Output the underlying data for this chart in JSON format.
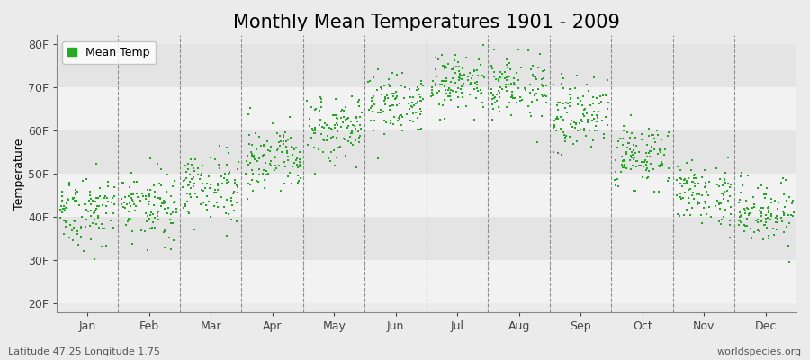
{
  "title": "Monthly Mean Temperatures 1901 - 2009",
  "ylabel": "Temperature",
  "xlabel_labels": [
    "Jan",
    "Feb",
    "Mar",
    "Apr",
    "May",
    "Jun",
    "Jul",
    "Aug",
    "Sep",
    "Oct",
    "Nov",
    "Dec"
  ],
  "ytick_labels": [
    "20F",
    "30F",
    "40F",
    "50F",
    "60F",
    "70F",
    "80F"
  ],
  "ytick_values": [
    20,
    30,
    40,
    50,
    60,
    70,
    80
  ],
  "ylim": [
    18,
    82
  ],
  "xlim": [
    0,
    12
  ],
  "dot_color": "#22AA22",
  "dot_size": 3.5,
  "legend_label": "Mean Temp",
  "footer_left": "Latitude 47.25 Longitude 1.75",
  "footer_right": "worldspecies.org",
  "title_fontsize": 15,
  "axis_fontsize": 9,
  "footer_fontsize": 8,
  "background_color": "#EBEBEB",
  "band_color_light": "#F2F2F2",
  "band_color_dark": "#E4E4E4",
  "grid_color": "#666666",
  "monthly_mean_F": [
    40.5,
    41.5,
    46.5,
    52.5,
    59.5,
    65.5,
    70.0,
    69.5,
    62.5,
    53.5,
    45.0,
    41.0
  ],
  "monthly_std_F": [
    4.0,
    4.0,
    4.0,
    3.5,
    3.5,
    3.5,
    3.5,
    3.5,
    3.5,
    3.5,
    3.5,
    4.0
  ],
  "n_years": 109,
  "start_year": 1901,
  "warming_trend": 0.015,
  "random_seed": 7
}
